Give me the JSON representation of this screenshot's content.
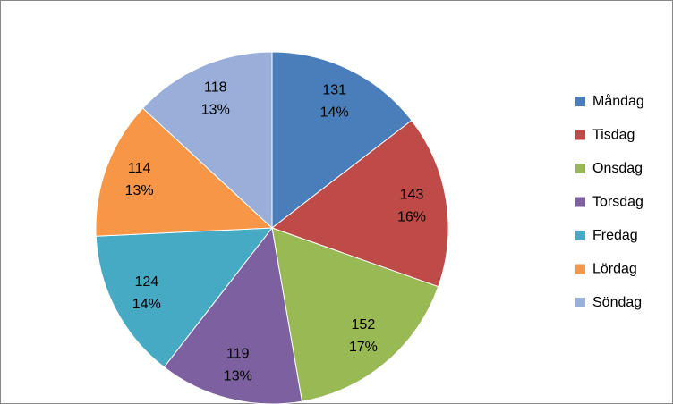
{
  "chart_data": {
    "type": "pie",
    "categories": [
      "Måndag",
      "Tisdag",
      "Onsdag",
      "Torsdag",
      "Fredag",
      "Lördag",
      "Söndag"
    ],
    "values": [
      131,
      143,
      152,
      119,
      124,
      114,
      118
    ],
    "percent_labels": [
      "14%",
      "16%",
      "17%",
      "13%",
      "14%",
      "13%",
      "13%"
    ],
    "colors": [
      "#4a7ebb",
      "#be4b48",
      "#98b954",
      "#7d60a0",
      "#46aac5",
      "#f79646",
      "#99aed8"
    ],
    "legend": "right"
  }
}
